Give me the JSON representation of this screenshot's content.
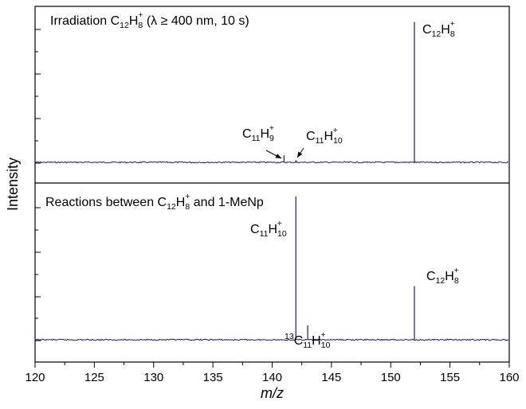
{
  "chart_data": {
    "type": "line",
    "xlabel": "m/z",
    "ylabel": "Intensity",
    "xlim": [
      120,
      160
    ],
    "x_ticks": [
      "120",
      "125",
      "130",
      "135",
      "140",
      "145",
      "150",
      "155",
      "160"
    ],
    "y_tick_labels_shown": false,
    "series_color": "#1a1a7a",
    "panels": [
      {
        "id": "top",
        "ylim": [
          0,
          1.1
        ],
        "title": {
          "pre": "Irradiation C",
          "sub1": "12",
          "mid": "H",
          "sub2": "8",
          "sup": "+",
          "post": " (λ ≥ 400 nm, 10 s)"
        },
        "peaks": [
          {
            "mz": 141,
            "intensity": 0.05
          },
          {
            "mz": 142,
            "intensity": 0.015
          },
          {
            "mz": 152,
            "intensity": 1.0
          }
        ],
        "annotations": [
          {
            "id": "c12h8",
            "base": "C",
            "n1": "12",
            "el2": "H",
            "n2": "8",
            "charge": "+"
          },
          {
            "id": "c11h9",
            "base": "C",
            "n1": "11",
            "el2": "H",
            "n2": "9",
            "charge": "+"
          },
          {
            "id": "c11h10",
            "base": "C",
            "n1": "11",
            "el2": "H",
            "n2": "10",
            "charge": "+"
          }
        ]
      },
      {
        "id": "bottom",
        "ylim": [
          0,
          1.3
        ],
        "title": {
          "pre": "Reactions between C",
          "sub1": "12",
          "mid": "H",
          "sub2": "8",
          "sup": "+",
          "post": " and 1-MeNp"
        },
        "peaks": [
          {
            "mz": 142,
            "intensity": 1.2
          },
          {
            "mz": 143,
            "intensity": 0.12
          },
          {
            "mz": 152,
            "intensity": 0.45
          }
        ],
        "annotations": [
          {
            "id": "c11h10",
            "base": "C",
            "n1": "11",
            "el2": "H",
            "n2": "10",
            "charge": "+"
          },
          {
            "id": "c13-c11h10",
            "iso": "13",
            "base": "C",
            "n1": "11",
            "el2": "H",
            "n2": "10",
            "charge": "+"
          },
          {
            "id": "c12h8",
            "base": "C",
            "n1": "12",
            "el2": "H",
            "n2": "8",
            "charge": "+"
          }
        ]
      }
    ]
  }
}
